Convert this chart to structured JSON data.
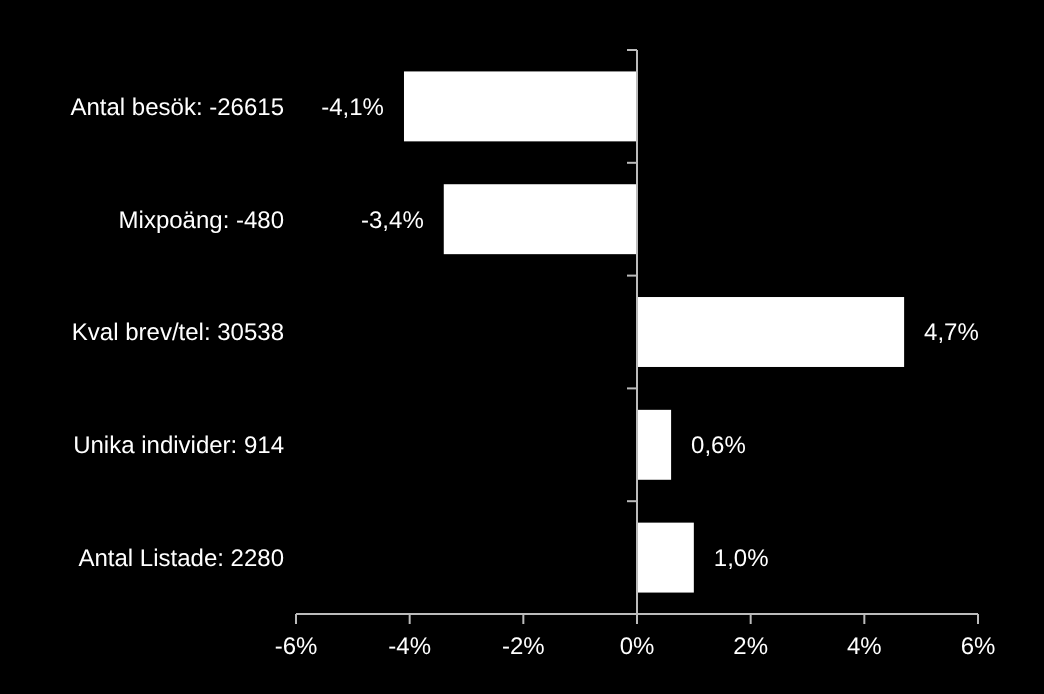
{
  "chart_data": {
    "type": "bar",
    "orientation": "horizontal",
    "categories": [
      "Antal besök: -26615",
      "Mixpoäng: -480",
      "Kval brev/tel: 30538",
      "Unika individer: 914",
      "Antal Listade: 2280"
    ],
    "values": [
      -4.1,
      -3.4,
      4.7,
      0.6,
      1.0
    ],
    "value_labels": [
      "-4,1%",
      "-3,4%",
      "4,7%",
      "0,6%",
      "1,0%"
    ],
    "color": "#ffffff",
    "xlim": [
      -6,
      6
    ],
    "xticks": [
      {
        "value": -6,
        "label": "-6%"
      },
      {
        "value": -4,
        "label": "-4%"
      },
      {
        "value": -2,
        "label": "-2%"
      },
      {
        "value": 0,
        "label": "0%"
      },
      {
        "value": 2,
        "label": "2%"
      },
      {
        "value": 4,
        "label": "4%"
      },
      {
        "value": 6,
        "label": "6%"
      }
    ]
  }
}
